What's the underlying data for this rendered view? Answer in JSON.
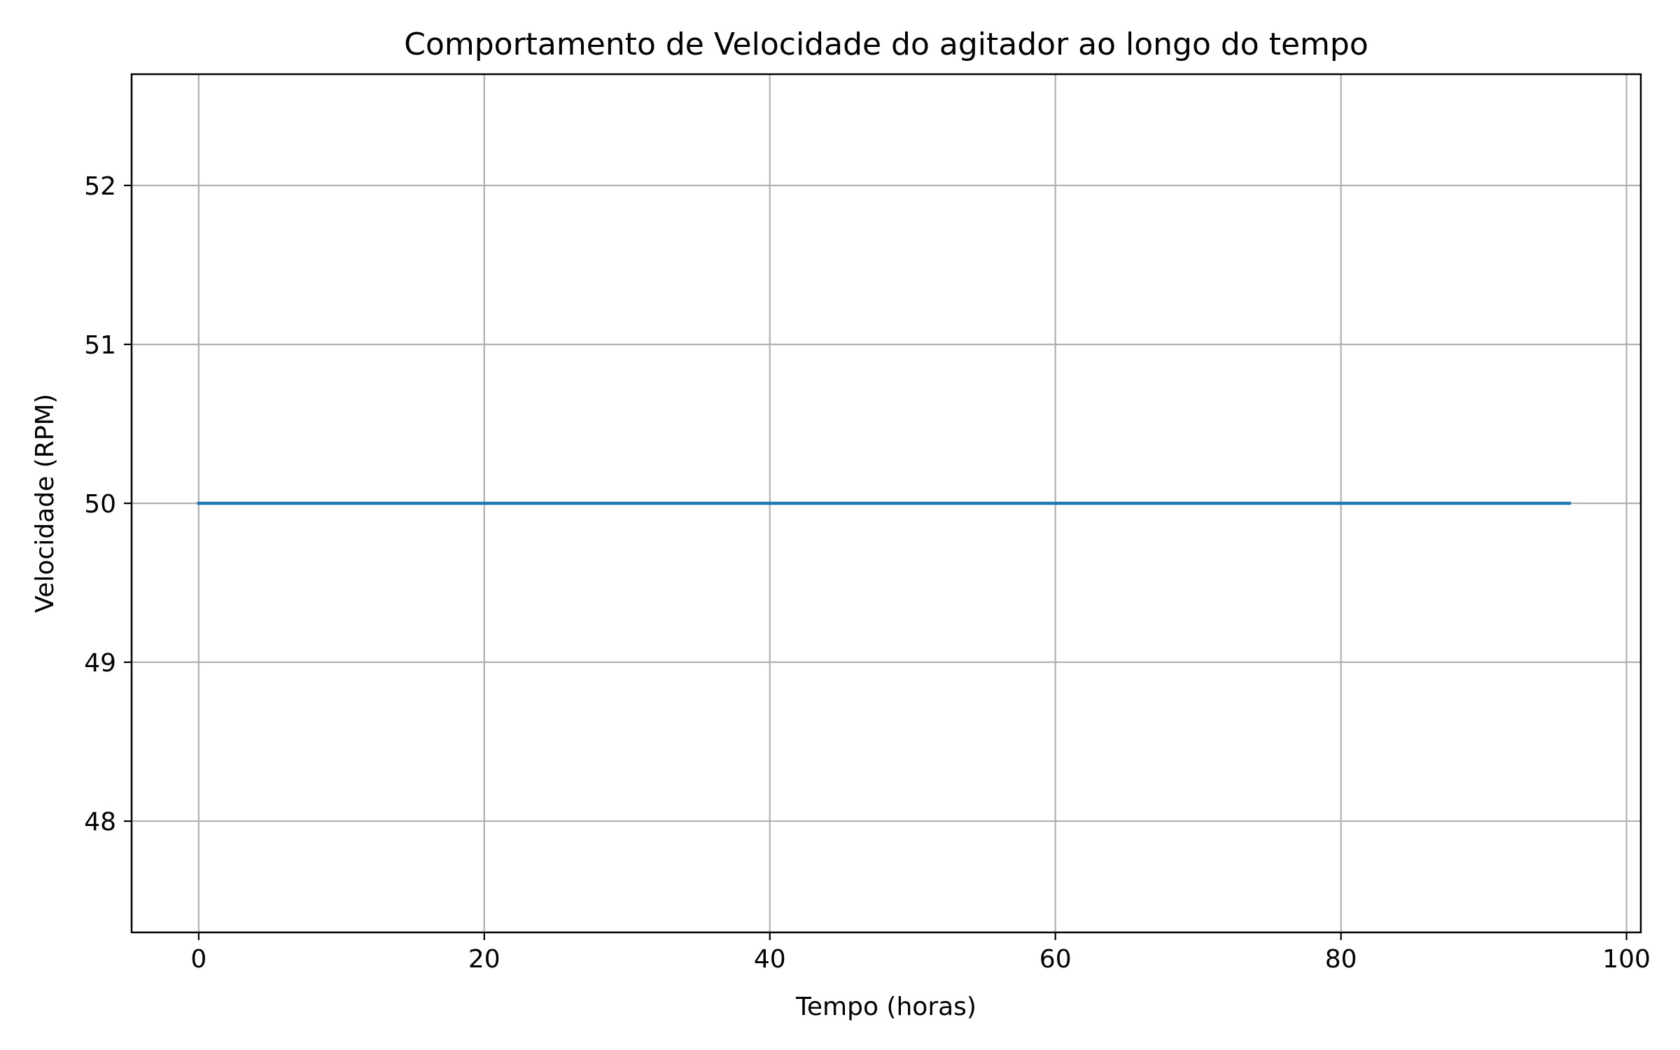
{
  "chart_data": {
    "type": "line",
    "title": "Comportamento de Velocidade do agitador ao longo do tempo",
    "xlabel": "Tempo (horas)",
    "ylabel": "Velocidade (RPM)",
    "xlim": [
      -4.7,
      101
    ],
    "ylim": [
      47.3,
      52.7
    ],
    "xticks": [
      0,
      20,
      40,
      60,
      80,
      100
    ],
    "xtick_labels": [
      "0",
      "20",
      "40",
      "60",
      "80",
      "100"
    ],
    "yticks": [
      48,
      49,
      50,
      51,
      52
    ],
    "ytick_labels": [
      "48",
      "49",
      "50",
      "51",
      "52"
    ],
    "grid": true,
    "series": [
      {
        "color": "#1f77b4",
        "x": [
          0,
          96
        ],
        "y": [
          50,
          50
        ]
      }
    ]
  },
  "colors": {
    "grid": "#b0b0b0",
    "axes": "#000000",
    "background": "#ffffff"
  }
}
